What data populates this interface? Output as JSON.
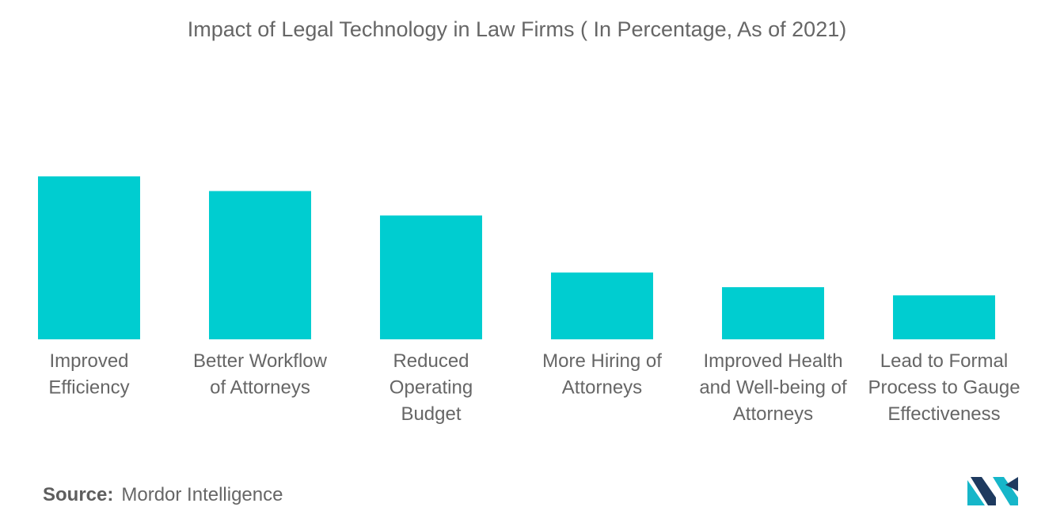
{
  "chart_data": {
    "type": "bar",
    "title": "Impact of Legal Technology in Law Firms ( In Percentage, As of 2021)",
    "categories": [
      [
        "Improved",
        "Efficiency"
      ],
      [
        "Better Workflow",
        "of Attorneys"
      ],
      [
        "Reduced",
        "Operating",
        "Budget"
      ],
      [
        "More Hiring of",
        "Attorneys"
      ],
      [
        "Improved Health",
        "and Well-being of",
        "Attorneys"
      ],
      [
        "Lead to Formal",
        "Process to Gauge",
        "Effectiveness"
      ]
    ],
    "values": [
      100,
      91,
      76,
      41,
      32,
      27
    ],
    "ylim": [
      0,
      100
    ],
    "grid": false,
    "legend": "none",
    "bar_color": "#00cdd0"
  },
  "source": {
    "label": "Source:",
    "text": "Mordor Intelligence"
  },
  "logo": {
    "icon": "mordor-intelligence-logo-icon",
    "colors": [
      "#1e3a5f",
      "#16b6c9"
    ]
  }
}
